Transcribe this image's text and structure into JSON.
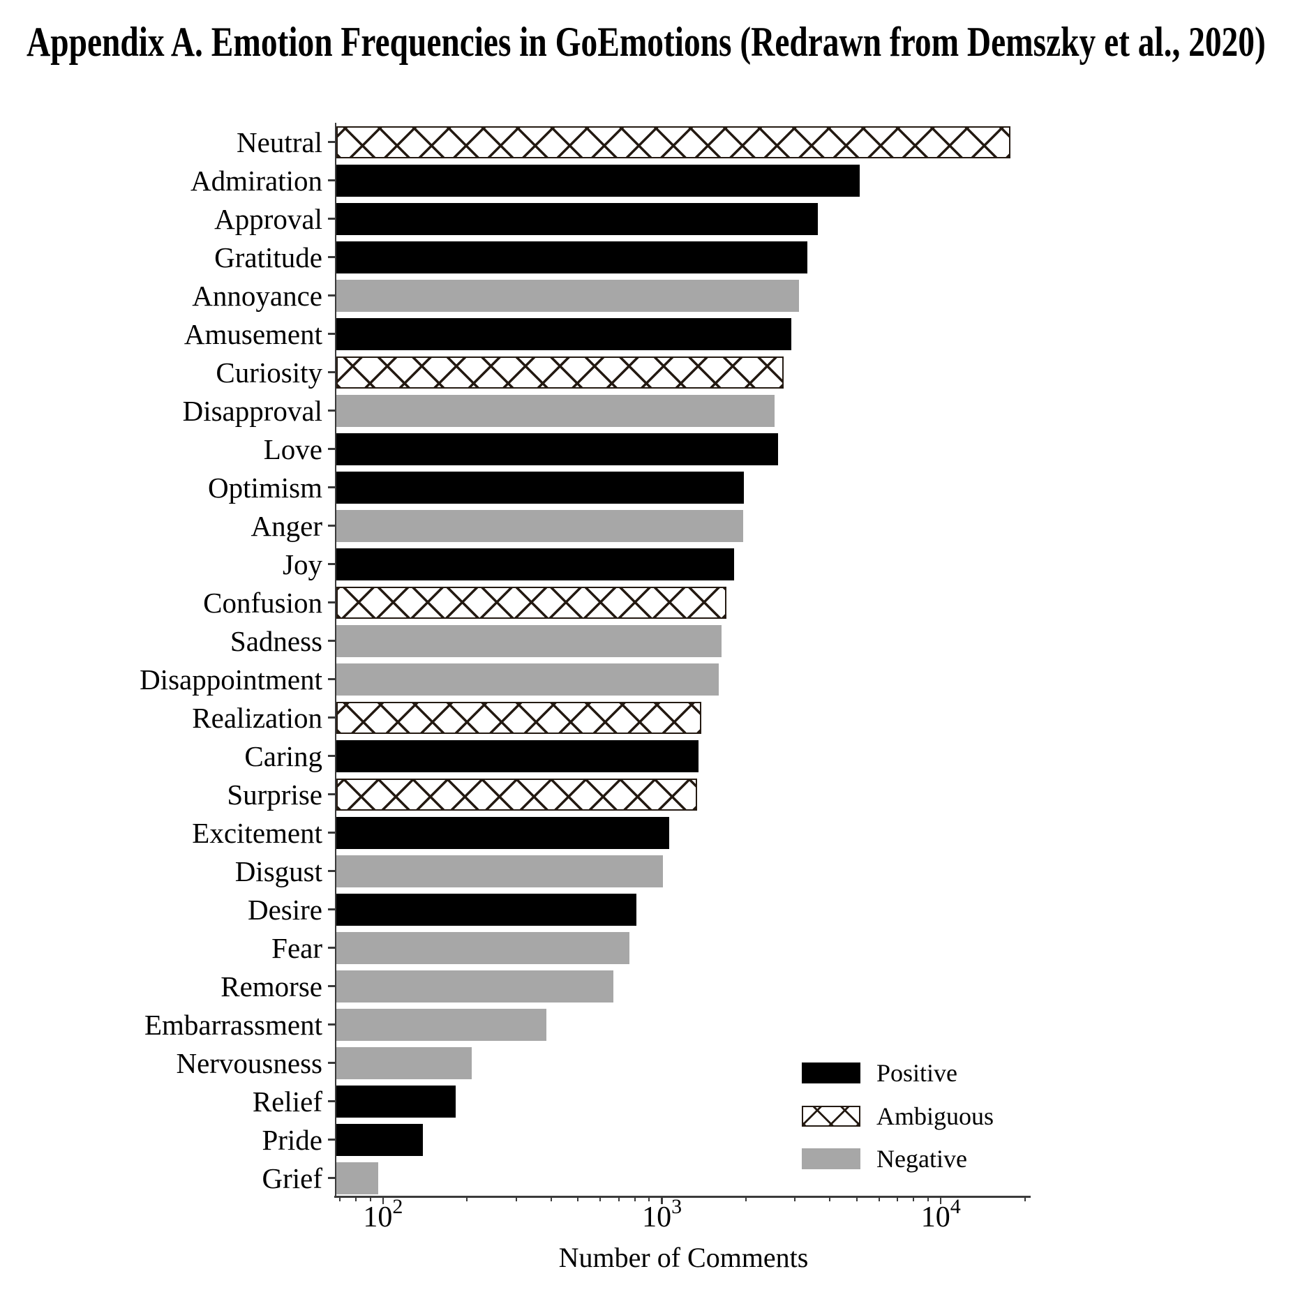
{
  "page": {
    "title": "Appendix A. Emotion Frequencies in GoEmotions (Redrawn from Demszky et al., 2020)"
  },
  "chart_data": {
    "type": "bar",
    "orientation": "horizontal",
    "xscale": "log",
    "xlabel": "Number of Comments",
    "xlim": [
      68,
      21000
    ],
    "xtick_exponents": [
      2,
      3,
      4
    ],
    "grid": false,
    "legend_position": "lower-right",
    "colors": {
      "positive": "#000000",
      "negative": "#a7a7a7",
      "ambiguous_fill": "#ffffff",
      "hatch_line": "#241a12",
      "axis": "#3a3a3a"
    },
    "legend": [
      {
        "label": "Positive",
        "sentiment": "positive"
      },
      {
        "label": "Ambiguous",
        "sentiment": "ambiguous"
      },
      {
        "label": "Negative",
        "sentiment": "negative"
      }
    ],
    "bars": [
      {
        "category": "Neutral",
        "value": 17772,
        "sentiment": "ambiguous"
      },
      {
        "category": "Admiration",
        "value": 5130,
        "sentiment": "positive"
      },
      {
        "category": "Approval",
        "value": 3627,
        "sentiment": "positive"
      },
      {
        "category": "Gratitude",
        "value": 3329,
        "sentiment": "positive"
      },
      {
        "category": "Annoyance",
        "value": 3094,
        "sentiment": "negative"
      },
      {
        "category": "Amusement",
        "value": 2910,
        "sentiment": "positive"
      },
      {
        "category": "Curiosity",
        "value": 2737,
        "sentiment": "ambiguous"
      },
      {
        "category": "Disapproval",
        "value": 2529,
        "sentiment": "negative"
      },
      {
        "category": "Love",
        "value": 2607,
        "sentiment": "positive"
      },
      {
        "category": "Optimism",
        "value": 1966,
        "sentiment": "positive"
      },
      {
        "category": "Anger",
        "value": 1955,
        "sentiment": "negative"
      },
      {
        "category": "Joy",
        "value": 1819,
        "sentiment": "positive"
      },
      {
        "category": "Confusion",
        "value": 1705,
        "sentiment": "ambiguous"
      },
      {
        "category": "Sadness",
        "value": 1636,
        "sentiment": "negative"
      },
      {
        "category": "Disappointment",
        "value": 1599,
        "sentiment": "negative"
      },
      {
        "category": "Realization",
        "value": 1385,
        "sentiment": "ambiguous"
      },
      {
        "category": "Caring",
        "value": 1349,
        "sentiment": "positive"
      },
      {
        "category": "Surprise",
        "value": 1334,
        "sentiment": "ambiguous"
      },
      {
        "category": "Excitement",
        "value": 1063,
        "sentiment": "positive"
      },
      {
        "category": "Disgust",
        "value": 1009,
        "sentiment": "negative"
      },
      {
        "category": "Desire",
        "value": 811,
        "sentiment": "positive"
      },
      {
        "category": "Fear",
        "value": 764,
        "sentiment": "negative"
      },
      {
        "category": "Remorse",
        "value": 671,
        "sentiment": "negative"
      },
      {
        "category": "Embarrassment",
        "value": 386,
        "sentiment": "negative"
      },
      {
        "category": "Nervousness",
        "value": 208,
        "sentiment": "negative"
      },
      {
        "category": "Relief",
        "value": 182,
        "sentiment": "positive"
      },
      {
        "category": "Pride",
        "value": 139,
        "sentiment": "positive"
      },
      {
        "category": "Grief",
        "value": 96,
        "sentiment": "negative"
      }
    ]
  }
}
